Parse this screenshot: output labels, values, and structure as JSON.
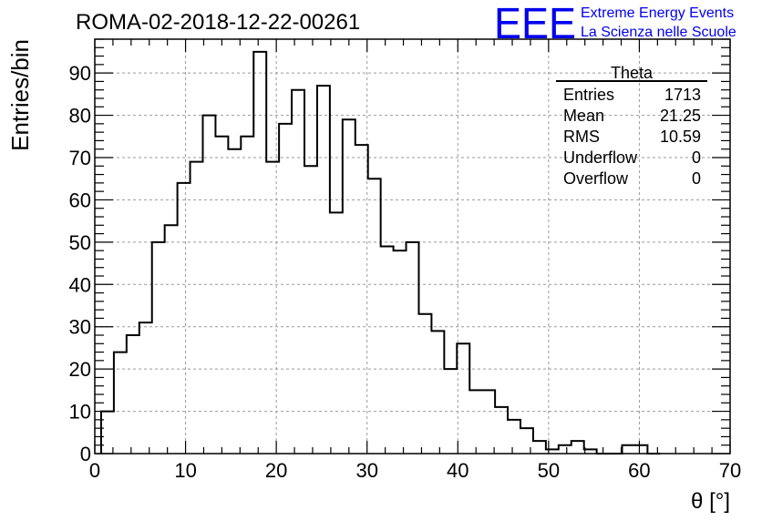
{
  "title": "ROMA-02-2018-12-22-00261",
  "logo": {
    "text": "EEE",
    "line1": "Extreme Energy Events",
    "line2": "La Scienza nelle Scuole",
    "color": "#0000ee"
  },
  "stats": {
    "name": "Theta",
    "rows": [
      {
        "label": "Entries",
        "value": "1713"
      },
      {
        "label": "Mean",
        "value": "21.25"
      },
      {
        "label": "RMS",
        "value": "10.59"
      },
      {
        "label": "Underflow",
        "value": "0"
      },
      {
        "label": "Overflow",
        "value": "0"
      }
    ]
  },
  "chart_data": {
    "type": "histogram",
    "title": "ROMA-02-2018-12-22-00261",
    "xlabel": "θ [°]",
    "ylabel": "Entries/bin",
    "xlim": [
      0,
      70
    ],
    "ylim": [
      0,
      98
    ],
    "xticks": [
      0,
      10,
      20,
      30,
      40,
      50,
      60,
      70
    ],
    "yticks": [
      0,
      10,
      20,
      30,
      40,
      50,
      60,
      70,
      80,
      90
    ],
    "grid": true,
    "bin_width": 1.4,
    "bin_start": 0.7,
    "values": [
      10,
      24,
      28,
      31,
      50,
      54,
      64,
      69,
      80,
      75,
      72,
      75,
      95,
      69,
      78,
      86,
      68,
      87,
      57,
      79,
      73,
      65,
      49,
      48,
      50,
      33,
      29,
      20,
      26,
      15,
      15,
      11,
      8,
      6,
      3,
      1,
      2,
      3,
      1,
      0,
      0,
      2,
      2,
      0
    ],
    "line_color": "#000000"
  }
}
